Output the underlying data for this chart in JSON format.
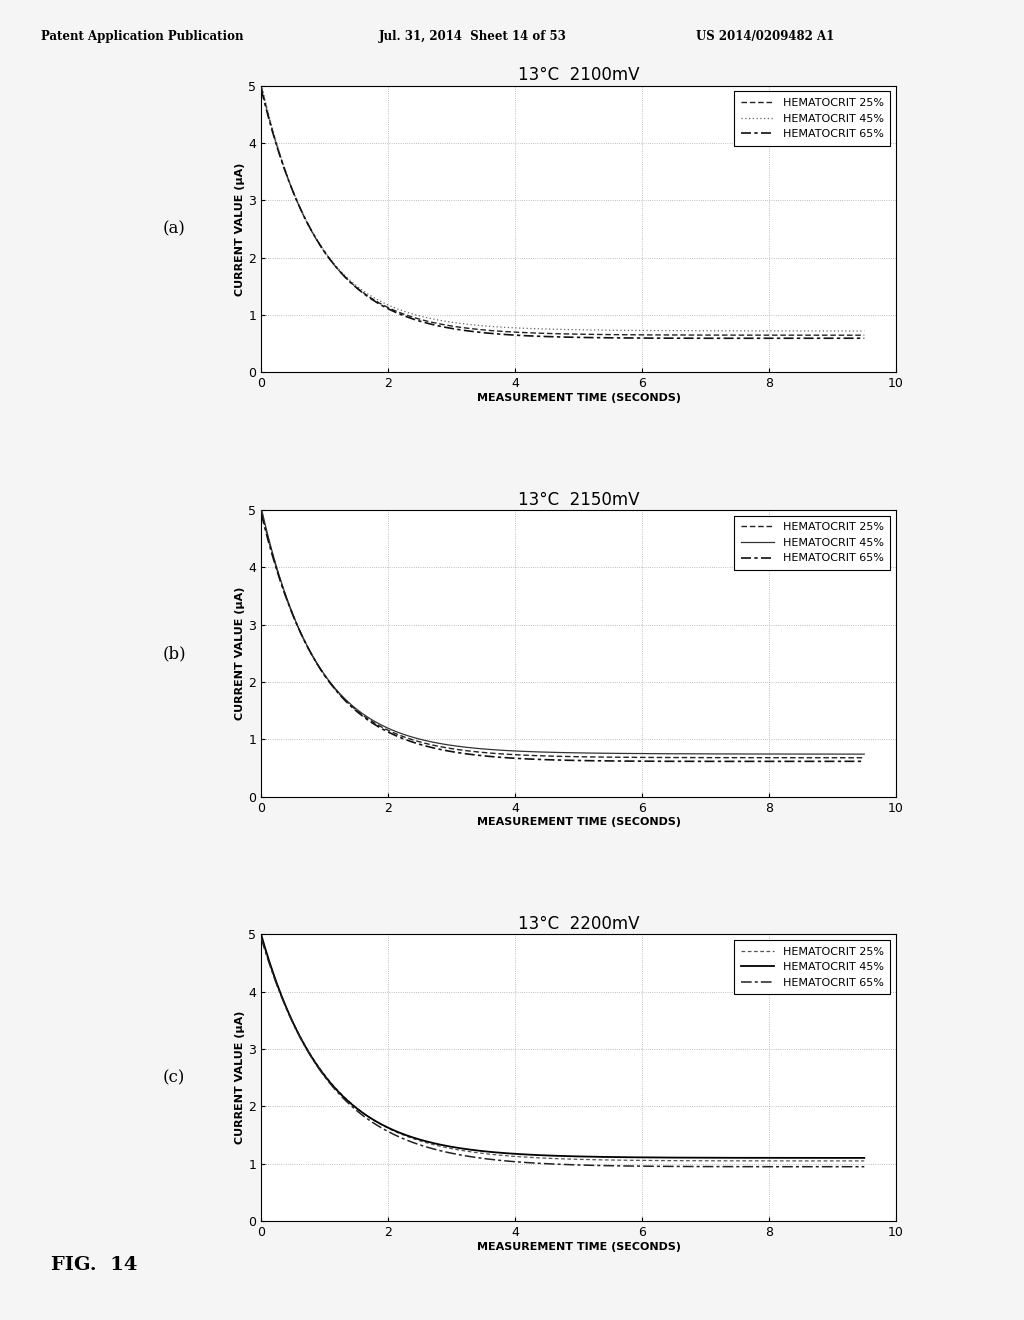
{
  "page_header_left": "Patent Application Publication",
  "page_header_mid": "Jul. 31, 2014  Sheet 14 of 53",
  "page_header_right": "US 2014/0209482 A1",
  "fig_label": "FIG.  14",
  "subplots": [
    {
      "label": "(a)",
      "title": "13°C  2100mV",
      "ylabel": "CURRENT VALUE (μA)",
      "xlabel": "MEASUREMENT TIME (SECONDS)",
      "xlim": [
        0,
        10
      ],
      "ylim": [
        0,
        5
      ],
      "xticks": [
        0,
        2,
        4,
        6,
        8,
        10
      ],
      "yticks": [
        0,
        1,
        2,
        3,
        4,
        5
      ],
      "legend_entries": [
        "HEMATOCRIT 25%",
        "HEMATOCRIT 45%",
        "HEMATOCRIT 65%"
      ],
      "curve_styles": [
        {
          "linestyle": "dashed",
          "color": "#222222",
          "linewidth": 1.0,
          "dashes": [
            4,
            2,
            4,
            2
          ]
        },
        {
          "linestyle": "dotted",
          "color": "#666666",
          "linewidth": 0.9,
          "dashes": [
            1,
            2,
            1,
            2
          ]
        },
        {
          "linestyle": "dashed",
          "color": "#111111",
          "linewidth": 1.2,
          "dashes": [
            6,
            2,
            2,
            2
          ]
        }
      ],
      "curve_params": [
        [
          5.0,
          0.65,
          1.1,
          0.0
        ],
        [
          5.0,
          0.72,
          1.15,
          0.05
        ],
        [
          5.0,
          0.6,
          1.05,
          -0.05
        ]
      ]
    },
    {
      "label": "(b)",
      "title": "13°C  2150mV",
      "ylabel": "CURRENT VALUE (μA)",
      "xlabel": "MEASUREMENT TIME (SECONDS)",
      "xlim": [
        0,
        10
      ],
      "ylim": [
        0,
        5
      ],
      "xticks": [
        0,
        2,
        4,
        6,
        8,
        10
      ],
      "yticks": [
        0,
        1,
        2,
        3,
        4,
        5
      ],
      "legend_entries": [
        "HEMATOCRIT 25%",
        "HEMATOCRIT 45%",
        "HEMATOCRIT 65%"
      ],
      "curve_styles": [
        {
          "linestyle": "dashed",
          "color": "#222222",
          "linewidth": 1.0,
          "dashes": [
            4,
            2,
            4,
            2
          ]
        },
        {
          "linestyle": "solid",
          "color": "#333333",
          "linewidth": 0.9,
          "dashes": []
        },
        {
          "linestyle": "dashed",
          "color": "#111111",
          "linewidth": 1.2,
          "dashes": [
            6,
            2,
            2,
            2
          ]
        }
      ],
      "curve_params": [
        [
          5.0,
          0.68,
          1.1,
          0.0
        ],
        [
          5.0,
          0.74,
          1.15,
          0.05
        ],
        [
          5.0,
          0.62,
          1.05,
          -0.05
        ]
      ]
    },
    {
      "label": "(c)",
      "title": "13°C  2200mV",
      "ylabel": "CURRENT VALUE (μA)",
      "xlabel": "MEASUREMENT TIME (SECONDS)",
      "xlim": [
        0,
        10
      ],
      "ylim": [
        0,
        5
      ],
      "xticks": [
        0,
        2,
        4,
        6,
        8,
        10
      ],
      "yticks": [
        0,
        1,
        2,
        3,
        4,
        5
      ],
      "legend_entries": [
        "HEMATOCRIT 25%",
        "HEMATOCRIT 45%",
        "HEMATOCRIT 65%"
      ],
      "curve_styles": [
        {
          "linestyle": "dashed",
          "color": "#555555",
          "linewidth": 0.9,
          "dashes": [
            3,
            2,
            3,
            2
          ]
        },
        {
          "linestyle": "solid",
          "color": "#000000",
          "linewidth": 1.3,
          "dashes": []
        },
        {
          "linestyle": "dashed",
          "color": "#222222",
          "linewidth": 1.1,
          "dashes": [
            7,
            2,
            2,
            2
          ]
        }
      ],
      "curve_params": [
        [
          5.0,
          1.05,
          0.95,
          -0.04
        ],
        [
          5.0,
          1.1,
          1.0,
          0.0
        ],
        [
          5.0,
          0.95,
          0.92,
          -0.06
        ]
      ]
    }
  ],
  "background_color": "#f5f5f5",
  "plot_bg": "#ffffff",
  "grid_color": "#aaaaaa",
  "grid_style": "dotted",
  "grid_linewidth": 0.6,
  "title_fontsize": 12,
  "axis_label_fontsize": 8,
  "tick_fontsize": 9,
  "legend_fontsize": 8
}
